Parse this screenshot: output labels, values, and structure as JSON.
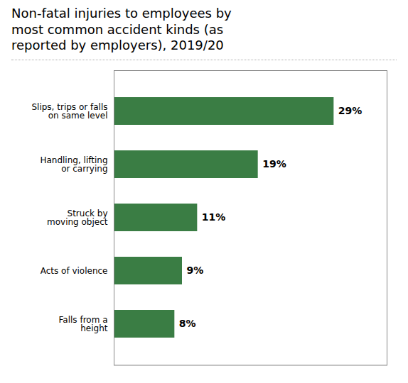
{
  "chart_data": {
    "type": "bar",
    "title": "Non-fatal injuries to employees by\nmost common accident kinds (as\nreported by employers), 2019/20",
    "orientation": "horizontal",
    "categories": [
      "Falls from a\nheight",
      "Acts of violence",
      "Struck by\nmoving object",
      "Handling, lifting\nor carrying",
      "Slips, trips or falls\non same level"
    ],
    "values": [
      8,
      9,
      11,
      19,
      29
    ],
    "value_labels": [
      "8%",
      "9%",
      "11%",
      "19%",
      "29%"
    ],
    "data_labels": true,
    "color": "#3a7d44",
    "xlim": [
      0,
      36
    ],
    "tick_labels": "y",
    "grid": false
  }
}
